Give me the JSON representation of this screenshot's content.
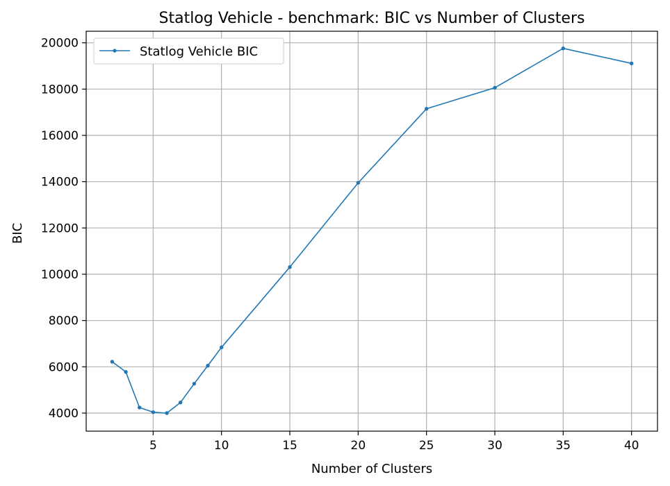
{
  "chart_data": {
    "type": "line",
    "title": "Statlog Vehicle - benchmark: BIC vs Number of Clusters",
    "xlabel": "Number of Clusters",
    "ylabel": "BIC",
    "xlim": [
      0.1,
      41.9
    ],
    "ylim": [
      3220,
      20500
    ],
    "xticks": [
      5,
      10,
      15,
      20,
      25,
      30,
      35,
      40
    ],
    "xtick_labels": [
      "5",
      "10",
      "15",
      "20",
      "25",
      "30",
      "35",
      "40"
    ],
    "yticks": [
      4000,
      6000,
      8000,
      10000,
      12000,
      14000,
      16000,
      18000,
      20000
    ],
    "ytick_labels": [
      "4000",
      "6000",
      "8000",
      "10000",
      "12000",
      "14000",
      "16000",
      "18000",
      "20000"
    ],
    "grid": true,
    "legend": {
      "position": "top-left"
    },
    "series": [
      {
        "name": "Statlog Vehicle BIC",
        "color": "#1f77b4",
        "marker": "dot",
        "x": [
          2,
          3,
          4,
          5,
          6,
          7,
          8,
          9,
          10,
          15,
          20,
          25,
          30,
          35,
          40
        ],
        "y": [
          6220,
          5780,
          4240,
          4040,
          4000,
          4460,
          5270,
          6050,
          6840,
          10310,
          13950,
          17150,
          18060,
          19760,
          19110
        ]
      }
    ]
  }
}
